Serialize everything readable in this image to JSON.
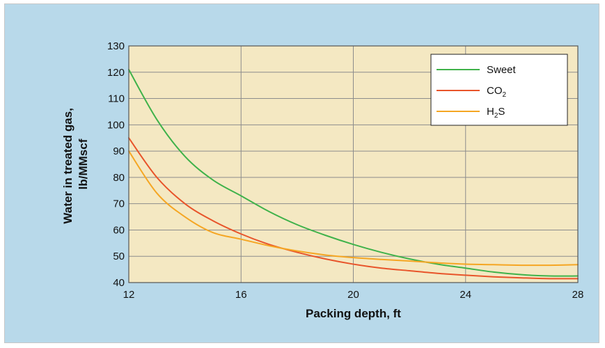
{
  "chart_data": {
    "type": "line",
    "title": "",
    "xlabel": "Packing depth, ft",
    "ylabel": "Water in treated gas, lb/MMscf",
    "ylabel_lines": [
      "Water in treated gas,",
      "lb/MMscf"
    ],
    "xlim": [
      12,
      28
    ],
    "ylim": [
      40,
      130
    ],
    "x_ticks": [
      12,
      16,
      20,
      24,
      28
    ],
    "y_ticks": [
      40,
      50,
      60,
      70,
      80,
      90,
      100,
      110,
      120,
      130
    ],
    "grid": true,
    "legend_position": "top-right",
    "x": [
      12,
      13,
      14,
      15,
      16,
      17,
      18,
      19,
      20,
      21,
      22,
      23,
      24,
      25,
      26,
      27,
      28
    ],
    "series": [
      {
        "name": "Sweet",
        "legend_parts": [
          {
            "text": "Sweet"
          }
        ],
        "color": "#3fb24a",
        "values": [
          121,
          102,
          88,
          79,
          73,
          67,
          62,
          58,
          54.5,
          51.5,
          49,
          47,
          45.5,
          44,
          43,
          42.5,
          42.5
        ]
      },
      {
        "name": "CO2",
        "legend_parts": [
          {
            "text": "CO"
          },
          {
            "text": "2",
            "sub": true
          }
        ],
        "color": "#e8542a",
        "values": [
          95,
          80,
          70,
          63.5,
          58.5,
          54.5,
          51.5,
          49,
          47,
          45.5,
          44.5,
          43.5,
          42.8,
          42.2,
          41.8,
          41.5,
          41.5
        ]
      },
      {
        "name": "H2S",
        "legend_parts": [
          {
            "text": "H"
          },
          {
            "text": "2",
            "sub": true
          },
          {
            "text": "S"
          }
        ],
        "color": "#f5a623",
        "values": [
          90,
          74,
          65,
          59,
          56.5,
          54,
          52,
          50.5,
          49.5,
          48.8,
          48.2,
          47.5,
          47,
          46.8,
          46.6,
          46.6,
          46.8
        ]
      }
    ]
  },
  "colors": {
    "frame_background": "#b8d9ea",
    "plot_background": "#f4e8c2",
    "grid": "#8c8c8c"
  }
}
